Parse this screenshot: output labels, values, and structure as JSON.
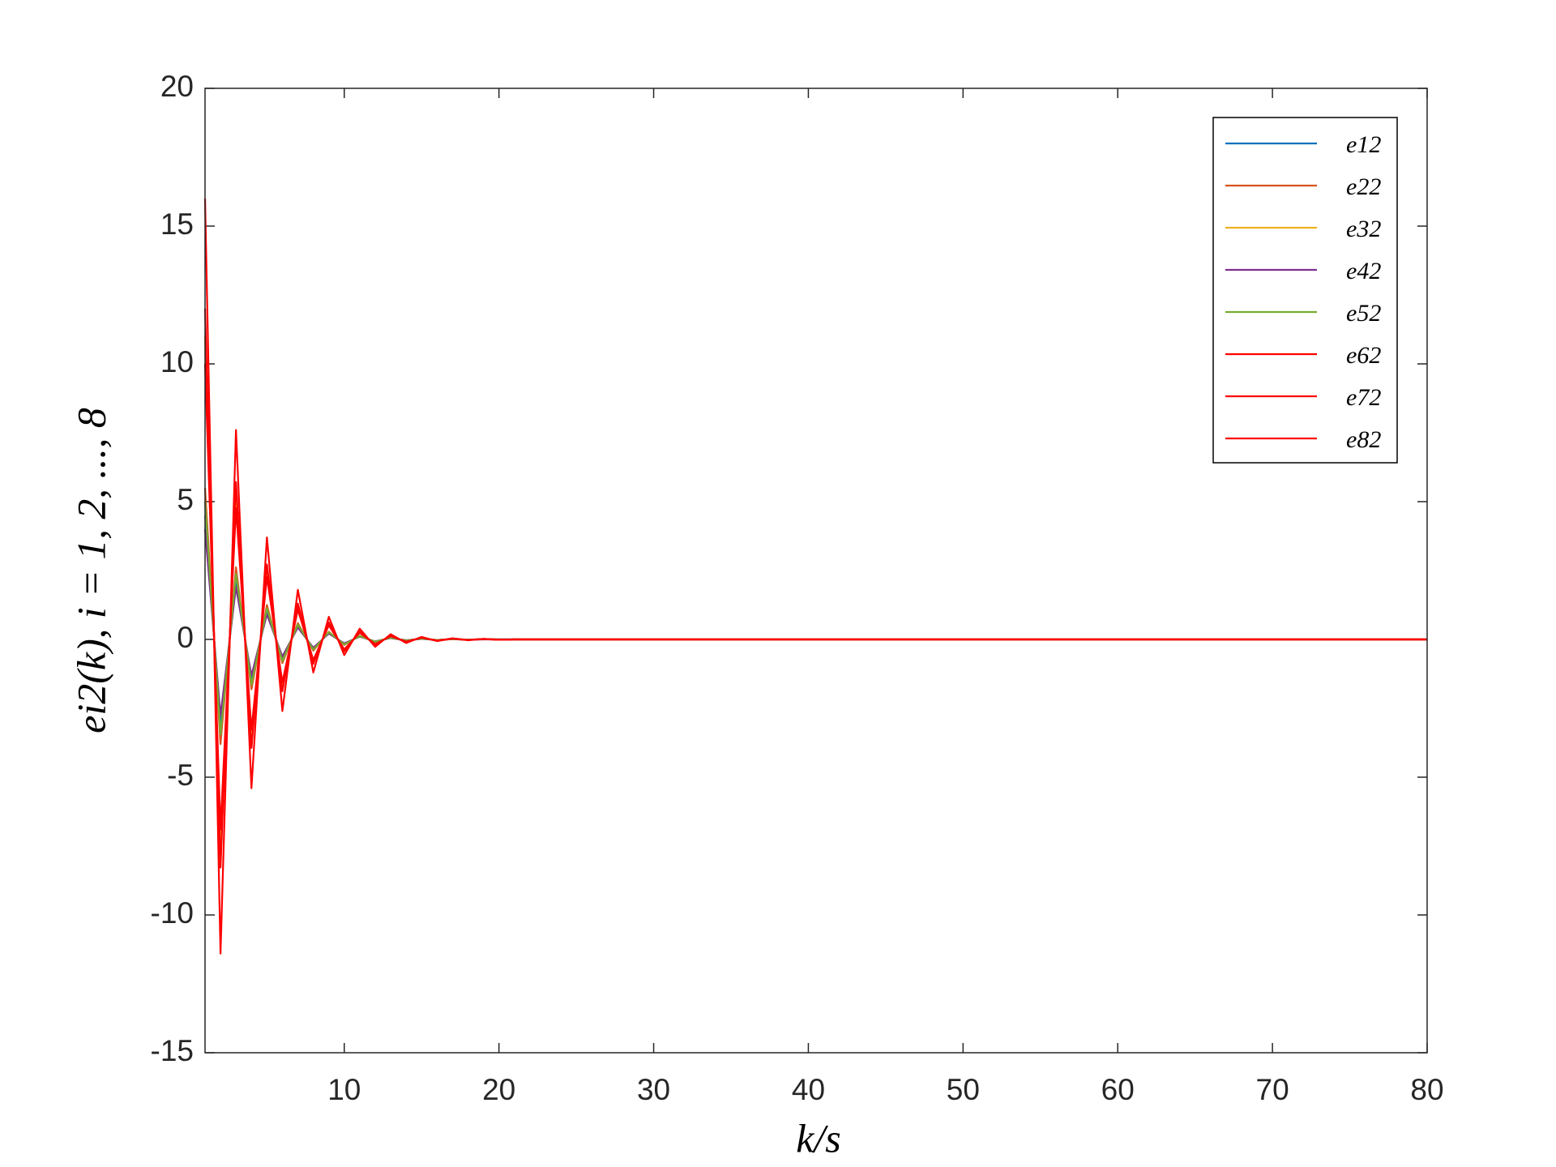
{
  "chart_data": {
    "type": "line",
    "x_label": "k/s",
    "y_label": "ei2(k), i = 1, 2, ..., 8",
    "x": [
      1,
      2,
      3,
      4,
      5,
      6,
      7,
      8,
      9,
      10,
      11,
      12,
      13,
      14,
      15,
      16,
      17,
      18,
      19,
      20,
      21,
      22,
      23,
      24,
      25,
      26,
      27,
      28,
      29,
      30,
      31,
      32,
      33,
      34,
      35,
      36,
      37,
      38,
      39,
      40,
      41,
      42,
      43,
      44,
      45,
      46,
      47,
      48,
      49,
      50,
      51,
      52,
      53,
      54,
      55,
      56,
      57,
      58,
      59,
      60,
      61,
      62,
      63,
      64,
      65,
      66,
      67,
      68,
      69,
      70,
      71,
      72,
      73,
      74,
      75,
      76,
      77,
      78,
      79,
      80
    ],
    "xlim": [
      1,
      80
    ],
    "xticks": [
      10,
      20,
      30,
      40,
      50,
      60,
      70,
      80
    ],
    "ylim": [
      -15,
      20
    ],
    "yticks": [
      -15,
      -10,
      -5,
      0,
      5,
      10,
      15,
      20
    ],
    "legend": "northeast",
    "series": [
      {
        "name": "e12",
        "color": "#0072BD",
        "values": [
          4.5,
          -3.1,
          2.14,
          -1.48,
          1.02,
          -0.7,
          0.49,
          -0.34,
          0.23,
          -0.16,
          0.11,
          -0.08,
          0.05,
          -0.04,
          0.02,
          -0.02,
          0.01,
          -0.01,
          0.01,
          0,
          0,
          0,
          0,
          0,
          0,
          0,
          0,
          0,
          0,
          0,
          0,
          0,
          0,
          0,
          0,
          0,
          0,
          0,
          0,
          0,
          0,
          0,
          0,
          0,
          0,
          0,
          0,
          0,
          0,
          0,
          0,
          0,
          0,
          0,
          0,
          0,
          0,
          0,
          0,
          0,
          0,
          0,
          0,
          0,
          0,
          0,
          0,
          0,
          0,
          0,
          0,
          0,
          0,
          0,
          0,
          0,
          0,
          0,
          0,
          0
        ]
      },
      {
        "name": "e22",
        "color": "#D95319",
        "values": [
          5.5,
          -3.8,
          2.62,
          -1.81,
          1.25,
          -0.86,
          0.59,
          -0.41,
          0.28,
          -0.2,
          0.13,
          -0.09,
          0.06,
          -0.04,
          0.03,
          -0.02,
          0.01,
          -0.01,
          0.01,
          0,
          0,
          0,
          0,
          0,
          0,
          0,
          0,
          0,
          0,
          0,
          0,
          0,
          0,
          0,
          0,
          0,
          0,
          0,
          0,
          0,
          0,
          0,
          0,
          0,
          0,
          0,
          0,
          0,
          0,
          0,
          0,
          0,
          0,
          0,
          0,
          0,
          0,
          0,
          0,
          0,
          0,
          0,
          0,
          0,
          0,
          0,
          0,
          0,
          0,
          0,
          0,
          0,
          0,
          0,
          0,
          0,
          0,
          0,
          0,
          0
        ]
      },
      {
        "name": "e32",
        "color": "#EDB120",
        "values": [
          11,
          -7.59,
          5.24,
          -3.62,
          2.5,
          -1.72,
          1.19,
          -0.82,
          0.57,
          -0.39,
          0.27,
          -0.19,
          0.13,
          -0.09,
          0.06,
          -0.04,
          0.03,
          -0.02,
          0.01,
          -0.01,
          0,
          0,
          0,
          0,
          0,
          0,
          0,
          0,
          0,
          0,
          0,
          0,
          0,
          0,
          0,
          0,
          0,
          0,
          0,
          0,
          0,
          0,
          0,
          0,
          0,
          0,
          0,
          0,
          0,
          0,
          0,
          0,
          0,
          0,
          0,
          0,
          0,
          0,
          0,
          0,
          0,
          0,
          0,
          0,
          0,
          0,
          0,
          0,
          0,
          0,
          0,
          0,
          0,
          0,
          0,
          0,
          0,
          0,
          0,
          0
        ]
      },
      {
        "name": "e42",
        "color": "#7E2F8E",
        "values": [
          4,
          -2.76,
          1.9,
          -1.31,
          0.91,
          -0.62,
          0.43,
          -0.3,
          0.21,
          -0.14,
          0.1,
          -0.07,
          0.05,
          -0.03,
          0.02,
          -0.02,
          0.01,
          -0.01,
          0,
          0,
          0,
          0,
          0,
          0,
          0,
          0,
          0,
          0,
          0,
          0,
          0,
          0,
          0,
          0,
          0,
          0,
          0,
          0,
          0,
          0,
          0,
          0,
          0,
          0,
          0,
          0,
          0,
          0,
          0,
          0,
          0,
          0,
          0,
          0,
          0,
          0,
          0,
          0,
          0,
          0,
          0,
          0,
          0,
          0,
          0,
          0,
          0,
          0,
          0,
          0,
          0,
          0,
          0,
          0,
          0,
          0,
          0,
          0,
          0,
          0
        ]
      },
      {
        "name": "e52",
        "color": "#77AC30",
        "values": [
          5,
          -3.45,
          2.38,
          -1.64,
          1.13,
          -0.78,
          0.54,
          -0.37,
          0.26,
          -0.18,
          0.12,
          -0.08,
          0.06,
          -0.04,
          0.03,
          -0.02,
          0.01,
          -0.01,
          0.01,
          0,
          0,
          0,
          0,
          0,
          0,
          0,
          0,
          0,
          0,
          0,
          0,
          0,
          0,
          0,
          0,
          0,
          0,
          0,
          0,
          0,
          0,
          0,
          0,
          0,
          0,
          0,
          0,
          0,
          0,
          0,
          0,
          0,
          0,
          0,
          0,
          0,
          0,
          0,
          0,
          0,
          0,
          0,
          0,
          0,
          0,
          0,
          0,
          0,
          0,
          0,
          0,
          0,
          0,
          0,
          0,
          0,
          0,
          0,
          0,
          0
        ]
      },
      {
        "name": "e62",
        "color": "#FF0000",
        "values": [
          16,
          -11.4,
          7.6,
          -5.4,
          3.7,
          -2.6,
          1.8,
          -1.2,
          0.82,
          -0.57,
          0.39,
          -0.27,
          0.19,
          -0.13,
          0.09,
          -0.06,
          0.04,
          -0.03,
          0.02,
          -0.01,
          0,
          0,
          0,
          0,
          0,
          0,
          0,
          0,
          0,
          0,
          0,
          0,
          0,
          0,
          0,
          0,
          0,
          0,
          0,
          0,
          0,
          0,
          0,
          0,
          0,
          0,
          0,
          0,
          0,
          0,
          0,
          0,
          0,
          0,
          0,
          0,
          0,
          0,
          0,
          0,
          0,
          0,
          0,
          0,
          0,
          0,
          0,
          0,
          0,
          0,
          0,
          0,
          0,
          0,
          0,
          0,
          0,
          0,
          0,
          0
        ]
      },
      {
        "name": "e72",
        "color": "#FF0000",
        "values": [
          12,
          -8.28,
          5.71,
          -3.94,
          2.72,
          -1.88,
          1.3,
          -0.89,
          0.62,
          -0.43,
          0.29,
          -0.2,
          0.14,
          -0.1,
          0.07,
          -0.05,
          0.03,
          -0.02,
          0.02,
          -0.01,
          0,
          0,
          0,
          0,
          0,
          0,
          0,
          0,
          0,
          0,
          0,
          0,
          0,
          0,
          0,
          0,
          0,
          0,
          0,
          0,
          0,
          0,
          0,
          0,
          0,
          0,
          0,
          0,
          0,
          0,
          0,
          0,
          0,
          0,
          0,
          0,
          0,
          0,
          0,
          0,
          0,
          0,
          0,
          0,
          0,
          0,
          0,
          0,
          0,
          0,
          0,
          0,
          0,
          0,
          0,
          0,
          0,
          0,
          0,
          0
        ]
      },
      {
        "name": "e82",
        "color": "#FF0000",
        "values": [
          10,
          -6.9,
          4.76,
          -3.28,
          2.27,
          -1.56,
          1.08,
          -0.75,
          0.51,
          -0.36,
          0.24,
          -0.17,
          0.12,
          -0.08,
          0.06,
          -0.04,
          0.03,
          -0.02,
          0.01,
          -0.01,
          0,
          0,
          0,
          0,
          0,
          0,
          0,
          0,
          0,
          0,
          0,
          0,
          0,
          0,
          0,
          0,
          0,
          0,
          0,
          0,
          0,
          0,
          0,
          0,
          0,
          0,
          0,
          0,
          0,
          0,
          0,
          0,
          0,
          0,
          0,
          0,
          0,
          0,
          0,
          0,
          0,
          0,
          0,
          0,
          0,
          0,
          0,
          0,
          0,
          0,
          0,
          0,
          0,
          0,
          0,
          0,
          0,
          0,
          0,
          0
        ]
      }
    ]
  }
}
